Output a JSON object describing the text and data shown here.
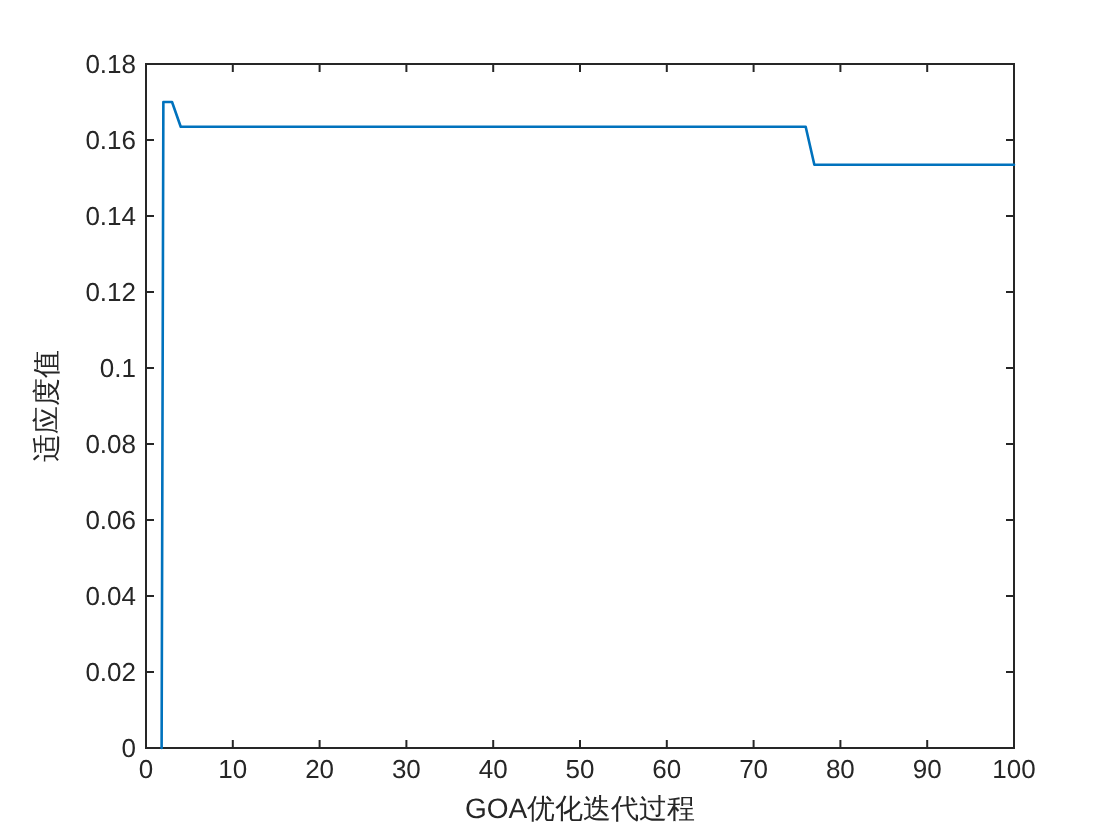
{
  "chart_data": {
    "type": "line",
    "xlabel": "GOA优化迭代过程",
    "ylabel": "适应度值",
    "x": [
      1.8,
      2,
      3,
      4,
      76,
      77,
      100
    ],
    "series": [
      {
        "color": "#0072bd",
        "values": [
          0,
          0.17,
          0.17,
          0.1635,
          0.1635,
          0.1535,
          0.1535
        ]
      }
    ],
    "xlim": [
      0,
      100
    ],
    "xticks": [
      0,
      10,
      20,
      30,
      40,
      50,
      60,
      70,
      80,
      90,
      100
    ],
    "ylim": [
      0,
      0.18
    ],
    "yticks": [
      0,
      0.02,
      0.04,
      0.06,
      0.08,
      0.1,
      0.12,
      0.14,
      0.16,
      0.18
    ]
  }
}
